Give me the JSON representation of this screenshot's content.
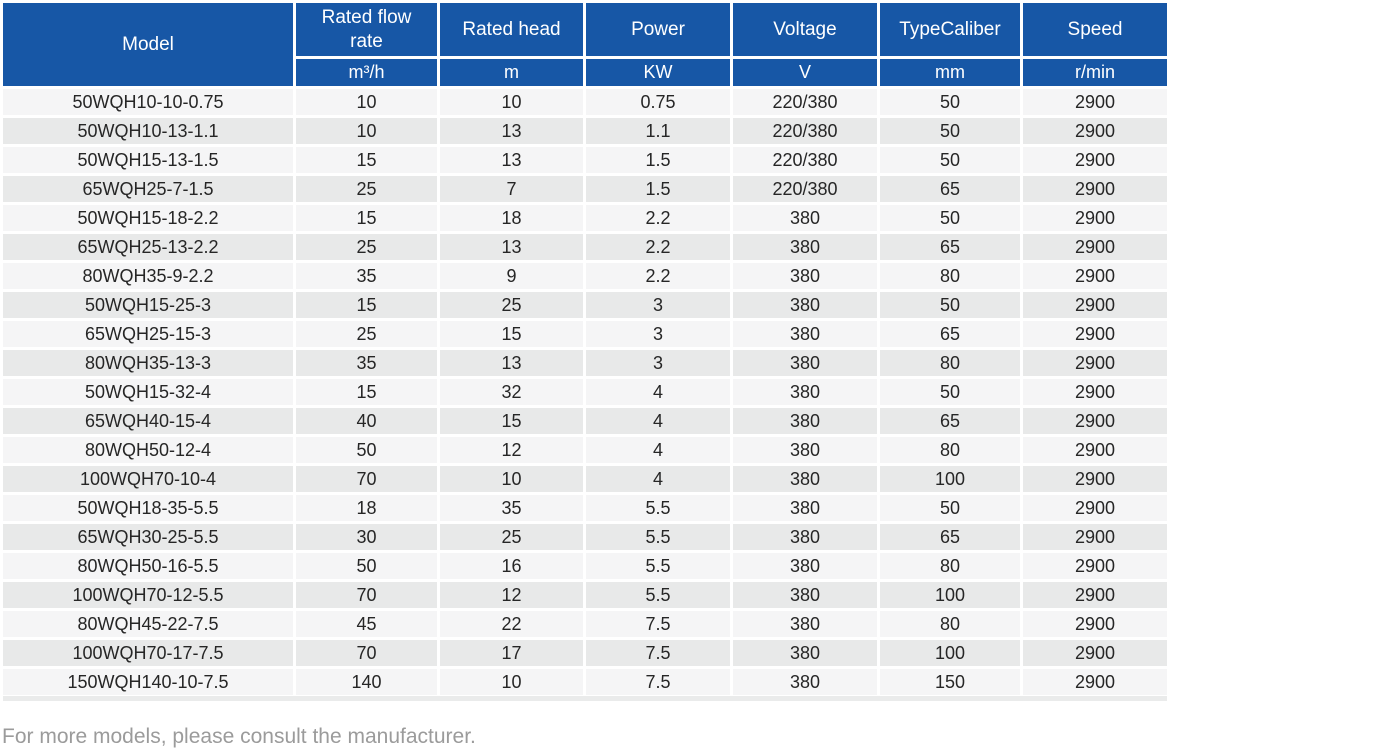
{
  "table": {
    "columns": [
      {
        "key": "model",
        "label": "Model",
        "unit": ""
      },
      {
        "key": "flow_rate",
        "label": "Rated flow rate",
        "unit": "m³/h"
      },
      {
        "key": "head",
        "label": "Rated head",
        "unit": "m"
      },
      {
        "key": "power",
        "label": "Power",
        "unit": "KW"
      },
      {
        "key": "voltage",
        "label": "Voltage",
        "unit": "V"
      },
      {
        "key": "caliber",
        "label": "TypeCaliber",
        "unit": "mm"
      },
      {
        "key": "speed",
        "label": "Speed",
        "unit": "r/min"
      }
    ],
    "rows": [
      [
        "50WQH10-10-0.75",
        "10",
        "10",
        "0.75",
        "220/380",
        "50",
        "2900"
      ],
      [
        "50WQH10-13-1.1",
        "10",
        "13",
        "1.1",
        "220/380",
        "50",
        "2900"
      ],
      [
        "50WQH15-13-1.5",
        "15",
        "13",
        "1.5",
        "220/380",
        "50",
        "2900"
      ],
      [
        "65WQH25-7-1.5",
        "25",
        "7",
        "1.5",
        "220/380",
        "65",
        "2900"
      ],
      [
        "50WQH15-18-2.2",
        "15",
        "18",
        "2.2",
        "380",
        "50",
        "2900"
      ],
      [
        "65WQH25-13-2.2",
        "25",
        "13",
        "2.2",
        "380",
        "65",
        "2900"
      ],
      [
        "80WQH35-9-2.2",
        "35",
        "9",
        "2.2",
        "380",
        "80",
        "2900"
      ],
      [
        "50WQH15-25-3",
        "15",
        "25",
        "3",
        "380",
        "50",
        "2900"
      ],
      [
        "65WQH25-15-3",
        "25",
        "15",
        "3",
        "380",
        "65",
        "2900"
      ],
      [
        "80WQH35-13-3",
        "35",
        "13",
        "3",
        "380",
        "80",
        "2900"
      ],
      [
        "50WQH15-32-4",
        "15",
        "32",
        "4",
        "380",
        "50",
        "2900"
      ],
      [
        "65WQH40-15-4",
        "40",
        "15",
        "4",
        "380",
        "65",
        "2900"
      ],
      [
        "80WQH50-12-4",
        "50",
        "12",
        "4",
        "380",
        "80",
        "2900"
      ],
      [
        "100WQH70-10-4",
        "70",
        "10",
        "4",
        "380",
        "100",
        "2900"
      ],
      [
        "50WQH18-35-5.5",
        "18",
        "35",
        "5.5",
        "380",
        "50",
        "2900"
      ],
      [
        "65WQH30-25-5.5",
        "30",
        "25",
        "5.5",
        "380",
        "65",
        "2900"
      ],
      [
        "80WQH50-16-5.5",
        "50",
        "16",
        "5.5",
        "380",
        "80",
        "2900"
      ],
      [
        "100WQH70-12-5.5",
        "70",
        "12",
        "5.5",
        "380",
        "100",
        "2900"
      ],
      [
        "80WQH45-22-7.5",
        "45",
        "22",
        "7.5",
        "380",
        "80",
        "2900"
      ],
      [
        "100WQH70-17-7.5",
        "70",
        "17",
        "7.5",
        "380",
        "100",
        "2900"
      ],
      [
        "150WQH140-10-7.5",
        "140",
        "10",
        "7.5",
        "380",
        "150",
        "2900"
      ]
    ]
  },
  "footer": {
    "note": "For more models, please consult the manufacturer."
  },
  "colors": {
    "header_bg": "#1757a6",
    "header_text": "#ffffff",
    "row_odd": "#f5f5f6",
    "row_even": "#e8e9e9",
    "body_text": "#262626",
    "footer_text": "#9b9b9b",
    "grid": "#ffffff"
  }
}
